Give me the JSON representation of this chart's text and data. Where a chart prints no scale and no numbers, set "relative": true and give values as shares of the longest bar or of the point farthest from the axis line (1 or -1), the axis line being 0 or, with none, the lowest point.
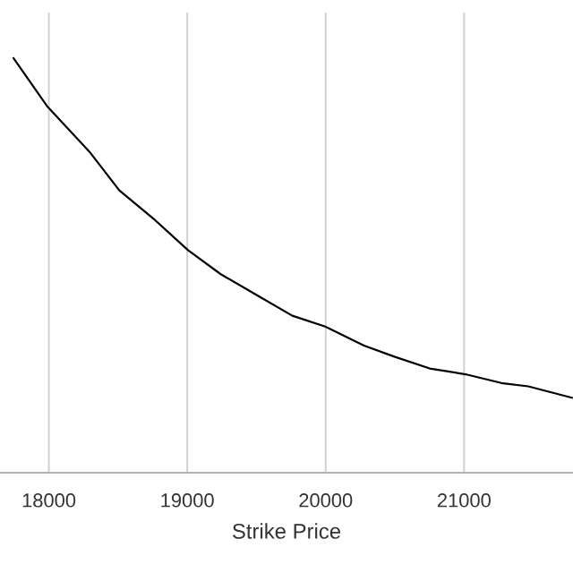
{
  "chart_data": {
    "type": "line",
    "xlabel": "Strike Price",
    "relative": true,
    "grid": true,
    "x": [
      17741,
      17991,
      18293,
      18509,
      18768,
      19005,
      19242,
      19501,
      19759,
      19997,
      20277,
      20492,
      20751,
      21010,
      21269,
      21463,
      21786
    ],
    "series": [
      {
        "color": "#000000",
        "values": [
          1.0,
          0.881,
          0.773,
          0.68,
          0.608,
          0.536,
          0.478,
          0.428,
          0.378,
          0.352,
          0.306,
          0.28,
          0.251,
          0.237,
          0.216,
          0.208,
          0.18
        ]
      }
    ],
    "xlim": [
      17647,
      21787
    ],
    "xticks": [
      18000,
      19000,
      20000,
      21000
    ]
  }
}
